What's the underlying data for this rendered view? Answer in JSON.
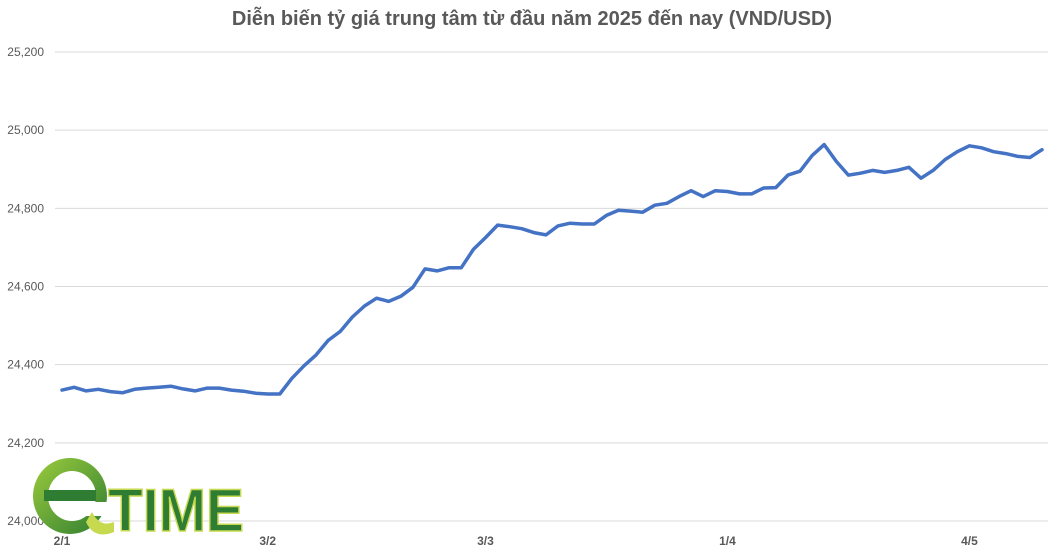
{
  "chart_data": {
    "type": "line",
    "title": "Diễn biến tỷ giá trung tâm từ đầu năm 2025 đến nay (VND/USD)",
    "xlabel": "",
    "ylabel": "",
    "ylim": [
      24000,
      25200
    ],
    "yticks": [
      "24,000",
      "24,200",
      "24,400",
      "24,600",
      "24,800",
      "25,000",
      "25,200"
    ],
    "ytick_values": [
      24000,
      24200,
      24400,
      24600,
      24800,
      25000,
      25200
    ],
    "x_tick_labels": [
      {
        "label": "2/1",
        "index": 0
      },
      {
        "label": "3/2",
        "index": 17
      },
      {
        "label": "3/3",
        "index": 35
      },
      {
        "label": "1/4",
        "index": 55
      },
      {
        "label": "4/5",
        "index": 75
      }
    ],
    "grid": true,
    "legend": "none",
    "series": [
      {
        "color": "#4472c4",
        "values": [
          24335,
          24342,
          24333,
          24337,
          24331,
          24328,
          24337,
          24340,
          24342,
          24345,
          24338,
          24333,
          24340,
          24340,
          24335,
          24332,
          24327,
          24325,
          24325,
          24365,
          24397,
          24425,
          24462,
          24485,
          24522,
          24550,
          24570,
          24562,
          24575,
          24598,
          24645,
          24640,
          24648,
          24648,
          24695,
          24725,
          24757,
          24753,
          24748,
          24738,
          24732,
          24755,
          24762,
          24760,
          24760,
          24782,
          24795,
          24793,
          24790,
          24808,
          24813,
          24830,
          24845,
          24830,
          24845,
          24843,
          24837,
          24837,
          24852,
          24853,
          24885,
          24895,
          24935,
          24963,
          24920,
          24885,
          24890,
          24897,
          24892,
          24897,
          24905,
          24877,
          24897,
          24925,
          24945,
          24960,
          24955,
          24945,
          24940,
          24933,
          24930,
          24950
        ]
      }
    ]
  },
  "logo": {
    "text": "TIME",
    "letter": "e",
    "colors": {
      "dark": "#2e7d32",
      "light": "#c6d94f",
      "mid": "#4caf50"
    }
  }
}
